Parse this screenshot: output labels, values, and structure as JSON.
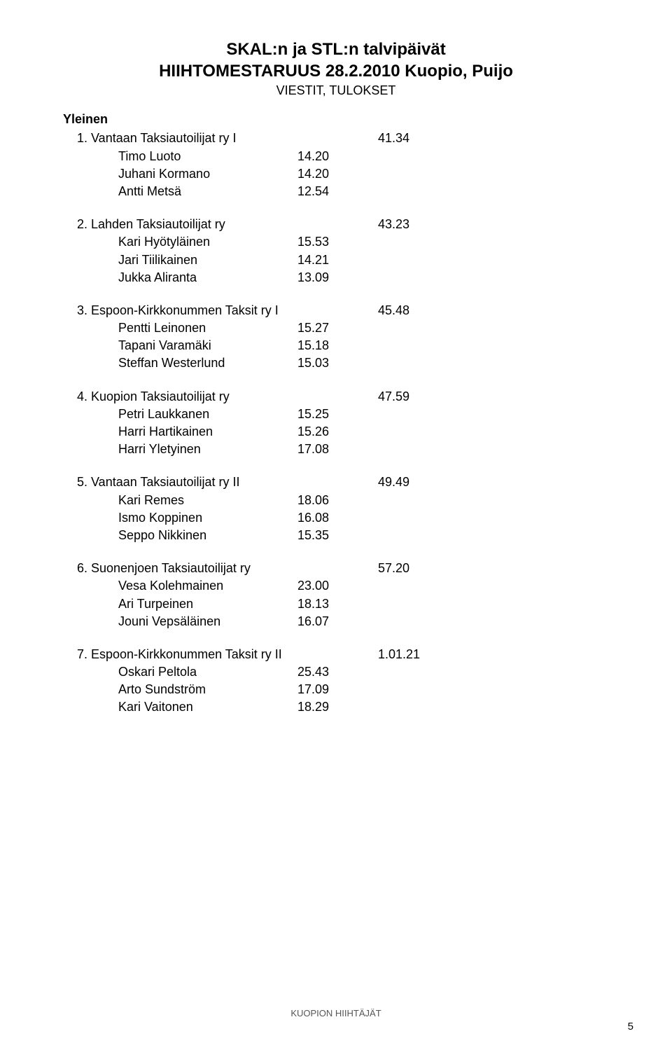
{
  "header": {
    "line1": "SKAL:n ja STL:n talvipäivät",
    "line2": "HIIHTOMESTARUUS 28.2.2010  Kuopio, Puijo",
    "subtitle": "VIESTIT, TULOKSET"
  },
  "category": "Yleinen",
  "teams": [
    {
      "rank": "1.",
      "name": "Vantaan Taksiautoilijat ry I",
      "time": "41.34",
      "members": [
        {
          "name": "Timo Luoto",
          "time": "14.20"
        },
        {
          "name": "Juhani Kormano",
          "time": "14.20"
        },
        {
          "name": "Antti Metsä",
          "time": "12.54"
        }
      ]
    },
    {
      "rank": "2.",
      "name": "Lahden Taksiautoilijat ry",
      "time": "43.23",
      "members": [
        {
          "name": "Kari Hyötyläinen",
          "time": "15.53"
        },
        {
          "name": "Jari Tiilikainen",
          "time": "14.21"
        },
        {
          "name": "Jukka Aliranta",
          "time": "13.09"
        }
      ]
    },
    {
      "rank": "3.",
      "name": "Espoon-Kirkkonummen Taksit ry I",
      "time": "45.48",
      "members": [
        {
          "name": "Pentti Leinonen",
          "time": "15.27"
        },
        {
          "name": "Tapani Varamäki",
          "time": "15.18"
        },
        {
          "name": "Steffan Westerlund",
          "time": "15.03"
        }
      ]
    },
    {
      "rank": "4.",
      "name": "Kuopion Taksiautoilijat ry",
      "time": "47.59",
      "members": [
        {
          "name": "Petri Laukkanen",
          "time": "15.25"
        },
        {
          "name": "Harri Hartikainen",
          "time": "15.26"
        },
        {
          "name": "Harri Yletyinen",
          "time": "17.08"
        }
      ]
    },
    {
      "rank": "5.",
      "name": "Vantaan Taksiautoilijat ry II",
      "time": "49.49",
      "members": [
        {
          "name": "Kari Remes",
          "time": "18.06"
        },
        {
          "name": "Ismo Koppinen",
          "time": "16.08"
        },
        {
          "name": "Seppo Nikkinen",
          "time": "15.35"
        }
      ]
    },
    {
      "rank": "6.",
      "name": "Suonenjoen Taksiautoilijat ry",
      "time": "57.20",
      "members": [
        {
          "name": "Vesa Kolehmainen",
          "time": "23.00"
        },
        {
          "name": "Ari Turpeinen",
          "time": "18.13"
        },
        {
          "name": "Jouni Vepsäläinen",
          "time": "16.07"
        }
      ]
    },
    {
      "rank": "7.",
      "name": "Espoon-Kirkkonummen Taksit ry II",
      "time": "1.01.21",
      "members": [
        {
          "name": "Oskari Peltola",
          "time": "25.43"
        },
        {
          "name": "Arto Sundström",
          "time": "17.09"
        },
        {
          "name": "Kari Vaitonen",
          "time": "18.29"
        }
      ]
    }
  ],
  "footer": "KUOPION HIIHTÄJÄT",
  "page_number": "5",
  "styles": {
    "background_color": "#ffffff",
    "text_color": "#000000",
    "footer_color": "#555555",
    "title_fontsize": 24,
    "body_fontsize": 18,
    "footer_fontsize": 13,
    "font_family": "Arial"
  }
}
